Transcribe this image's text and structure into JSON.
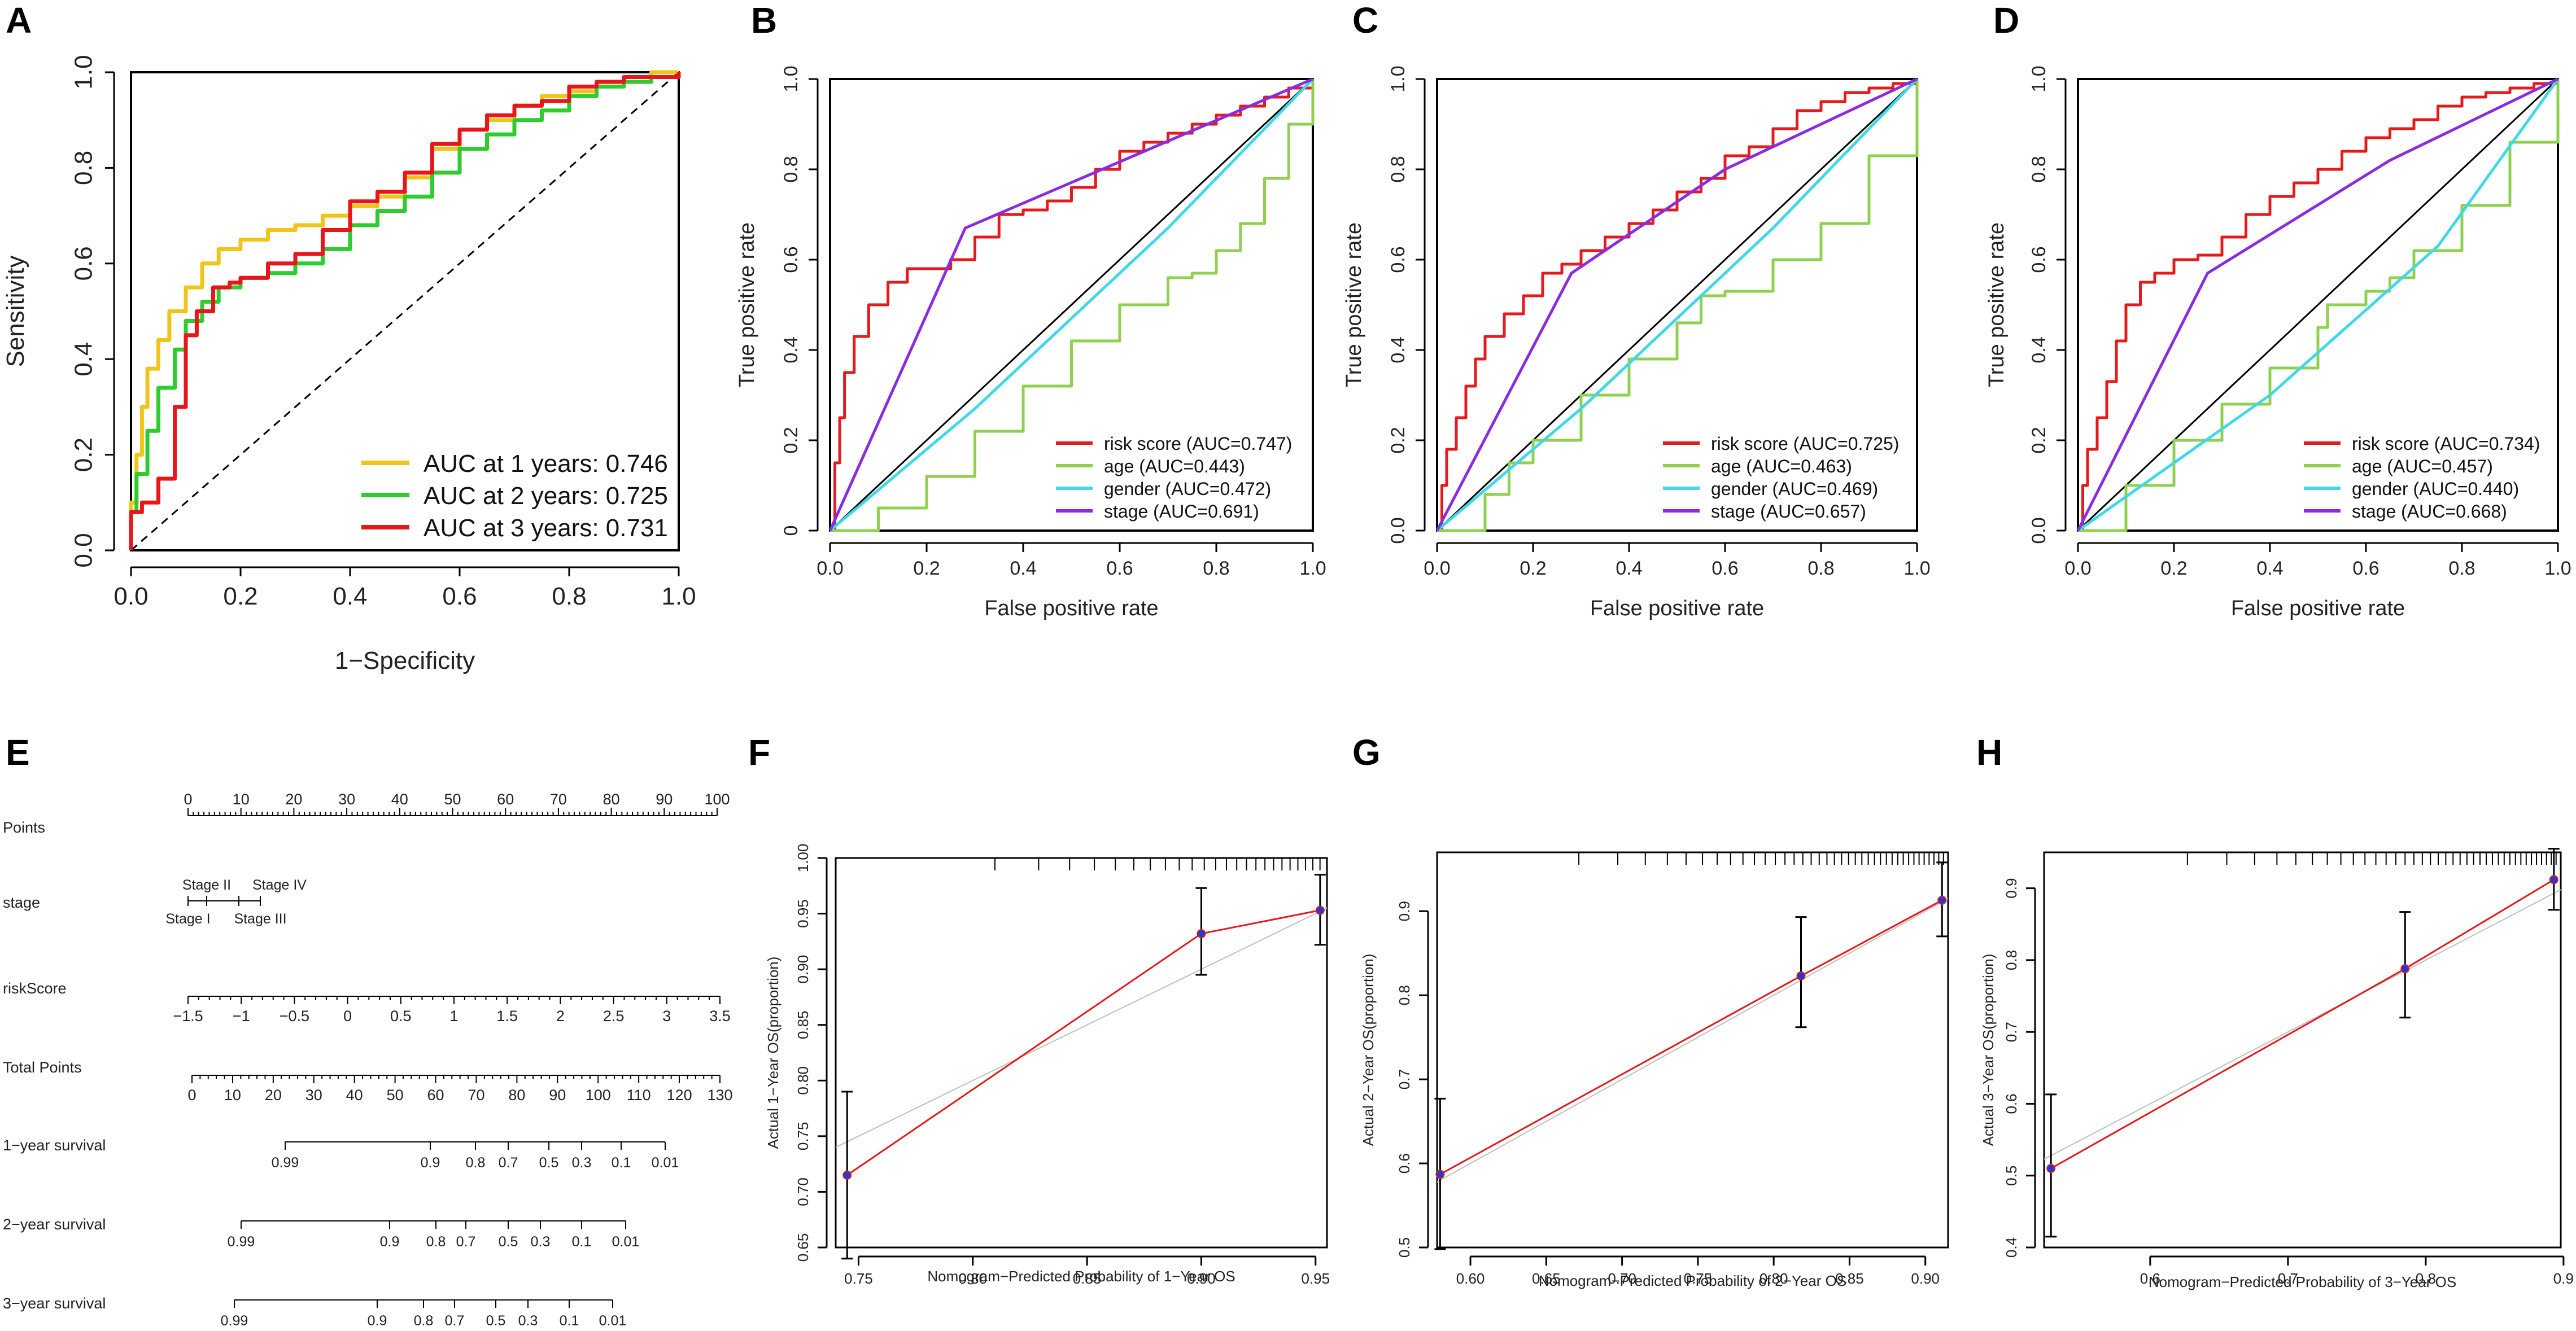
{
  "panel_letters": [
    "A",
    "B",
    "C",
    "D",
    "E",
    "F",
    "G",
    "H"
  ],
  "colors": {
    "red": "#e41a1c",
    "green": "#8fd14f",
    "cyan": "#3fd8e8",
    "purple": "#8a2be2",
    "yellow": "#f0c419",
    "green_a": "#2ecc2e",
    "red_a": "#e8151b",
    "gray": "#bfbfbf",
    "black": "#000000"
  },
  "chart_data": [
    {
      "id": "A",
      "type": "line",
      "title": "",
      "xlabel": "1−Specificity",
      "ylabel": "Sensitivity",
      "xlim": [
        0,
        1
      ],
      "ylim": [
        0,
        1
      ],
      "xticks": [
        "0.0",
        "0.2",
        "0.4",
        "0.6",
        "0.8",
        "1.0"
      ],
      "yticks": [
        "0.0",
        "0.2",
        "0.4",
        "0.6",
        "0.8",
        "1.0"
      ],
      "legend": "bottom-right",
      "diagonal": "dashed",
      "series": [
        {
          "name": "AUC at 1 years: 0.746",
          "color_key": "yellow",
          "x": [
            0,
            0,
            0.01,
            0.02,
            0.03,
            0.05,
            0.07,
            0.1,
            0.13,
            0.16,
            0.2,
            0.25,
            0.3,
            0.35,
            0.4,
            0.45,
            0.5,
            0.55,
            0.6,
            0.65,
            0.7,
            0.75,
            0.8,
            0.85,
            0.9,
            0.95,
            1
          ],
          "y": [
            0,
            0.1,
            0.2,
            0.3,
            0.38,
            0.44,
            0.5,
            0.55,
            0.6,
            0.63,
            0.65,
            0.67,
            0.68,
            0.7,
            0.72,
            0.74,
            0.78,
            0.84,
            0.88,
            0.9,
            0.93,
            0.95,
            0.96,
            0.98,
            0.99,
            1,
            1
          ]
        },
        {
          "name": "AUC at 2 years: 0.725",
          "color_key": "green_a",
          "x": [
            0,
            0,
            0.01,
            0.03,
            0.05,
            0.08,
            0.1,
            0.13,
            0.16,
            0.2,
            0.25,
            0.3,
            0.35,
            0.4,
            0.45,
            0.5,
            0.55,
            0.6,
            0.65,
            0.7,
            0.75,
            0.8,
            0.85,
            0.9,
            0.95,
            1
          ],
          "y": [
            0,
            0.08,
            0.16,
            0.25,
            0.34,
            0.42,
            0.48,
            0.52,
            0.55,
            0.57,
            0.58,
            0.6,
            0.63,
            0.68,
            0.71,
            0.74,
            0.79,
            0.84,
            0.87,
            0.9,
            0.92,
            0.95,
            0.97,
            0.98,
            0.99,
            1
          ]
        },
        {
          "name": "AUC at 3 years: 0.731",
          "color_key": "red_a",
          "x": [
            0,
            0,
            0.02,
            0.05,
            0.08,
            0.1,
            0.12,
            0.15,
            0.18,
            0.2,
            0.25,
            0.3,
            0.35,
            0.4,
            0.45,
            0.5,
            0.55,
            0.6,
            0.65,
            0.7,
            0.75,
            0.8,
            0.85,
            0.9,
            0.95,
            1
          ],
          "y": [
            0,
            0.08,
            0.1,
            0.15,
            0.3,
            0.45,
            0.5,
            0.55,
            0.56,
            0.57,
            0.6,
            0.62,
            0.67,
            0.73,
            0.75,
            0.79,
            0.85,
            0.88,
            0.91,
            0.93,
            0.94,
            0.97,
            0.98,
            0.99,
            0.99,
            1
          ]
        }
      ]
    },
    {
      "id": "B",
      "type": "line",
      "xlabel": "False positive rate",
      "ylabel": "True positive rate",
      "xlim": [
        0,
        1
      ],
      "ylim": [
        0,
        1
      ],
      "xticks": [
        "0.0",
        "0.2",
        "0.4",
        "0.6",
        "0.8",
        "1.0"
      ],
      "yticks": [
        "0",
        "0.2",
        "0.4",
        "0.6",
        "0.8",
        "1.0"
      ],
      "legend": "bottom-right",
      "diagonal": "solid",
      "series": [
        {
          "name": "risk score (AUC=0.747)",
          "color_key": "red",
          "x": [
            0,
            0.01,
            0.02,
            0.03,
            0.05,
            0.08,
            0.12,
            0.16,
            0.2,
            0.25,
            0.3,
            0.35,
            0.4,
            0.45,
            0.5,
            0.55,
            0.6,
            0.65,
            0.7,
            0.75,
            0.8,
            0.85,
            0.9,
            0.95,
            1
          ],
          "y": [
            0,
            0.15,
            0.25,
            0.35,
            0.43,
            0.5,
            0.55,
            0.58,
            0.58,
            0.6,
            0.65,
            0.7,
            0.71,
            0.73,
            0.76,
            0.8,
            0.84,
            0.86,
            0.88,
            0.9,
            0.92,
            0.94,
            0.96,
            0.98,
            1
          ]
        },
        {
          "name": "age (AUC=0.443)",
          "color_key": "green",
          "x": [
            0,
            0.1,
            0.2,
            0.3,
            0.4,
            0.5,
            0.6,
            0.7,
            0.75,
            0.8,
            0.85,
            0.9,
            0.95,
            1
          ],
          "y": [
            0,
            0.05,
            0.12,
            0.22,
            0.32,
            0.42,
            0.5,
            0.56,
            0.57,
            0.62,
            0.68,
            0.78,
            0.9,
            1
          ]
        },
        {
          "name": "gender (AUC=0.472)",
          "color_key": "cyan",
          "x": [
            0,
            0.3,
            0.7,
            1
          ],
          "y": [
            0,
            0.27,
            0.67,
            1
          ]
        },
        {
          "name": "stage (AUC=0.691)",
          "color_key": "purple",
          "x": [
            0,
            0.28,
            1
          ],
          "y": [
            0,
            0.67,
            1
          ]
        }
      ]
    },
    {
      "id": "C",
      "type": "line",
      "xlabel": "False positive rate",
      "ylabel": "True positive rate",
      "xlim": [
        0,
        1
      ],
      "ylim": [
        0,
        1
      ],
      "xticks": [
        "0.0",
        "0.2",
        "0.4",
        "0.6",
        "0.8",
        "1.0"
      ],
      "yticks": [
        "0.0",
        "0.2",
        "0.4",
        "0.6",
        "0.8",
        "1.0"
      ],
      "legend": "bottom-right",
      "diagonal": "solid",
      "series": [
        {
          "name": "risk score (AUC=0.725)",
          "color_key": "red",
          "x": [
            0,
            0.01,
            0.02,
            0.04,
            0.06,
            0.08,
            0.1,
            0.14,
            0.18,
            0.22,
            0.26,
            0.3,
            0.35,
            0.4,
            0.45,
            0.5,
            0.55,
            0.6,
            0.65,
            0.7,
            0.75,
            0.8,
            0.85,
            0.9,
            0.95,
            1
          ],
          "y": [
            0,
            0.1,
            0.18,
            0.25,
            0.32,
            0.38,
            0.43,
            0.48,
            0.52,
            0.57,
            0.59,
            0.62,
            0.65,
            0.68,
            0.71,
            0.75,
            0.78,
            0.83,
            0.85,
            0.89,
            0.93,
            0.95,
            0.97,
            0.98,
            0.99,
            1
          ]
        },
        {
          "name": "age (AUC=0.463)",
          "color_key": "green",
          "x": [
            0,
            0.1,
            0.15,
            0.2,
            0.3,
            0.4,
            0.5,
            0.55,
            0.6,
            0.7,
            0.8,
            0.9,
            1
          ],
          "y": [
            0,
            0.08,
            0.15,
            0.2,
            0.3,
            0.38,
            0.46,
            0.52,
            0.53,
            0.6,
            0.68,
            0.83,
            1
          ]
        },
        {
          "name": "gender (AUC=0.469)",
          "color_key": "cyan",
          "x": [
            0,
            0.3,
            0.7,
            1
          ],
          "y": [
            0,
            0.27,
            0.67,
            1
          ]
        },
        {
          "name": "stage (AUC=0.657)",
          "color_key": "purple",
          "x": [
            0,
            0.28,
            0.6,
            1
          ],
          "y": [
            0,
            0.57,
            0.8,
            1
          ]
        }
      ]
    },
    {
      "id": "D",
      "type": "line",
      "xlabel": "False positive rate",
      "ylabel": "True positive rate",
      "xlim": [
        0,
        1
      ],
      "ylim": [
        0,
        1
      ],
      "xticks": [
        "0.0",
        "0.2",
        "0.4",
        "0.6",
        "0.8",
        "1.0"
      ],
      "yticks": [
        "0.0",
        "0.2",
        "0.4",
        "0.6",
        "0.8",
        "1.0"
      ],
      "legend": "bottom-right",
      "diagonal": "solid",
      "series": [
        {
          "name": "risk score (AUC=0.734)",
          "color_key": "red",
          "x": [
            0,
            0.01,
            0.02,
            0.04,
            0.06,
            0.08,
            0.1,
            0.13,
            0.16,
            0.2,
            0.25,
            0.3,
            0.35,
            0.4,
            0.45,
            0.5,
            0.55,
            0.6,
            0.65,
            0.7,
            0.75,
            0.8,
            0.85,
            0.9,
            0.95,
            1
          ],
          "y": [
            0,
            0.1,
            0.18,
            0.25,
            0.33,
            0.42,
            0.5,
            0.55,
            0.57,
            0.6,
            0.61,
            0.65,
            0.7,
            0.74,
            0.77,
            0.8,
            0.84,
            0.87,
            0.89,
            0.91,
            0.94,
            0.96,
            0.97,
            0.98,
            0.99,
            1
          ]
        },
        {
          "name": "age (AUC=0.457)",
          "color_key": "green",
          "x": [
            0,
            0.1,
            0.2,
            0.3,
            0.4,
            0.5,
            0.52,
            0.6,
            0.65,
            0.7,
            0.8,
            0.9,
            1
          ],
          "y": [
            0,
            0.1,
            0.2,
            0.28,
            0.36,
            0.45,
            0.5,
            0.53,
            0.56,
            0.62,
            0.72,
            0.86,
            1
          ]
        },
        {
          "name": "gender (AUC=0.440)",
          "color_key": "cyan",
          "x": [
            0,
            0.4,
            0.75,
            1
          ],
          "y": [
            0,
            0.3,
            0.63,
            1
          ]
        },
        {
          "name": "stage (AUC=0.668)",
          "color_key": "purple",
          "x": [
            0,
            0.27,
            0.65,
            1
          ],
          "y": [
            0,
            0.57,
            0.82,
            1
          ]
        }
      ]
    },
    {
      "id": "F",
      "type": "scatter",
      "xlabel": "Nomogram−Predicted Probability of 1−Year OS",
      "ylabel": "Actual 1−Year OS(proportion)",
      "xlim": [
        0.74,
        0.955
      ],
      "ylim": [
        0.65,
        1.0
      ],
      "xticks": [
        "0.75",
        "0.80",
        "0.85",
        "0.90",
        "0.95"
      ],
      "yticks": [
        "0.65",
        "0.70",
        "0.75",
        "0.80",
        "0.85",
        "0.90",
        "0.95",
        "1.00"
      ],
      "points": [
        {
          "x": 0.745,
          "y": 0.715,
          "lo": 0.64,
          "hi": 0.79
        },
        {
          "x": 0.9,
          "y": 0.932,
          "lo": 0.895,
          "hi": 0.973
        },
        {
          "x": 0.952,
          "y": 0.953,
          "lo": 0.922,
          "hi": 0.985
        }
      ]
    },
    {
      "id": "G",
      "type": "scatter",
      "xlabel": "Nomogram−Predicted Probability of 2−Year OS",
      "ylabel": "Actual 2−Year OS(proportion)",
      "xlim": [
        0.578,
        0.915
      ],
      "ylim": [
        0.5,
        0.97
      ],
      "xticks": [
        "0.60",
        "0.65",
        "0.70",
        "0.75",
        "0.80",
        "0.85",
        "0.90"
      ],
      "yticks": [
        "0.5",
        "0.6",
        "0.7",
        "0.8",
        "0.9"
      ],
      "points": [
        {
          "x": 0.58,
          "y": 0.587,
          "lo": 0.498,
          "hi": 0.677
        },
        {
          "x": 0.818,
          "y": 0.823,
          "lo": 0.762,
          "hi": 0.893
        },
        {
          "x": 0.911,
          "y": 0.913,
          "lo": 0.87,
          "hi": 0.958
        }
      ]
    },
    {
      "id": "H",
      "type": "scatter",
      "xlabel": "Nomogram−Predicted Probability of 3−Year OS",
      "ylabel": "Actual 3−Year OS(proportion)",
      "xlim": [
        0.523,
        0.898
      ],
      "ylim": [
        0.4,
        0.95
      ],
      "xticks": [
        "0.6",
        "0.7",
        "0.8",
        "0.9"
      ],
      "yticks": [
        "0.4",
        "0.5",
        "0.6",
        "0.7",
        "0.8",
        "0.9"
      ],
      "points": [
        {
          "x": 0.528,
          "y": 0.51,
          "lo": 0.415,
          "hi": 0.613
        },
        {
          "x": 0.785,
          "y": 0.788,
          "lo": 0.72,
          "hi": 0.867
        },
        {
          "x": 0.893,
          "y": 0.912,
          "lo": 0.87,
          "hi": 0.955
        }
      ]
    }
  ],
  "nomogram": {
    "rows": [
      {
        "label": "Points",
        "scale": [
          0,
          10,
          20,
          30,
          40,
          50,
          60,
          70,
          80,
          90,
          100
        ]
      },
      {
        "label": "stage",
        "upper": [
          "Stage II",
          "Stage IV"
        ],
        "lower": [
          "Stage I",
          "Stage III"
        ]
      },
      {
        "label": "riskScore",
        "scale": [
          "−1.5",
          "−1",
          "−0.5",
          "0",
          "0.5",
          "1",
          "1.5",
          "2",
          "2.5",
          "3",
          "3.5"
        ]
      },
      {
        "label": "Total Points",
        "scale": [
          0,
          10,
          20,
          30,
          40,
          50,
          60,
          70,
          80,
          90,
          100,
          110,
          120,
          130
        ]
      },
      {
        "label": "1−year survival",
        "scale": [
          "0.99",
          "0.9",
          "0.8",
          "0.7",
          "0.5",
          "0.3",
          "0.1",
          "0.01"
        ]
      },
      {
        "label": "2−year survival",
        "scale": [
          "0.99",
          "0.9",
          "0.8",
          "0.7",
          "0.5",
          "0.3",
          "0.1",
          "0.01"
        ]
      },
      {
        "label": "3−year survival",
        "scale": [
          "0.99",
          "0.9",
          "0.8",
          "0.7",
          "0.5",
          "0.3",
          "0.1",
          "0.01"
        ]
      }
    ]
  }
}
